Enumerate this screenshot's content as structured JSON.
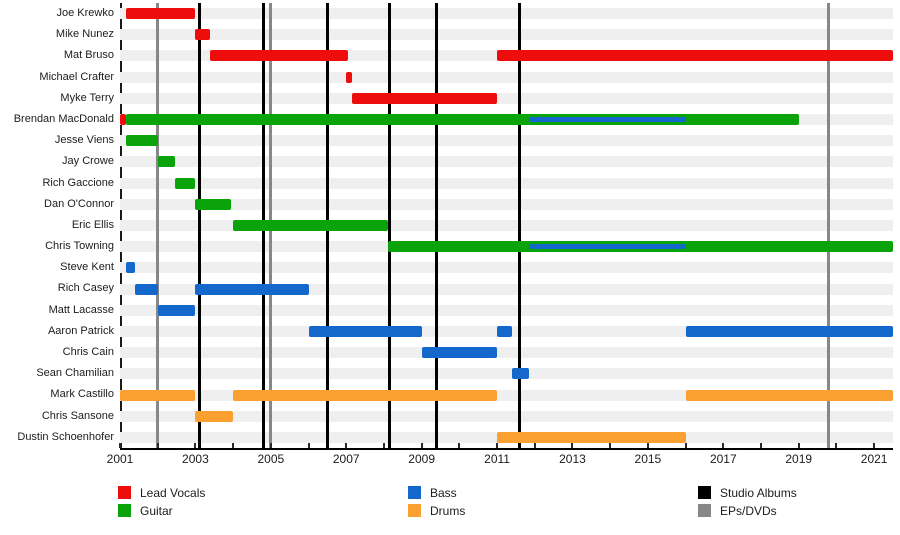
{
  "chart_data": {
    "type": "gantt-timeline",
    "description": "Band member timeline with instrument roles and release markers",
    "x_range": [
      2001,
      2021.5
    ],
    "x_tick_years": [
      2001,
      2002,
      2003,
      2004,
      2005,
      2006,
      2007,
      2008,
      2009,
      2010,
      2011,
      2012,
      2013,
      2014,
      2015,
      2016,
      2017,
      2018,
      2019,
      2020,
      2021
    ],
    "x_label_years": [
      2001,
      2003,
      2005,
      2007,
      2009,
      2011,
      2013,
      2015,
      2017,
      2019,
      2021
    ],
    "colors": {
      "Lead Vocals": "#ee0d0d",
      "Guitar": "#0aa30a",
      "Bass": "#1467cb",
      "Drums": "#f9a031",
      "Studio Albums": "#000000",
      "EPs/DVDs": "#878787"
    },
    "members": [
      {
        "name": "Joe Krewko",
        "bars": [
          {
            "role": "Lead Vocals",
            "start": 2001.15,
            "end": 2003.0
          }
        ]
      },
      {
        "name": "Mike Nunez",
        "bars": [
          {
            "role": "Lead Vocals",
            "start": 2003.0,
            "end": 2003.4
          }
        ]
      },
      {
        "name": "Mat Bruso",
        "bars": [
          {
            "role": "Lead Vocals",
            "start": 2003.4,
            "end": 2007.05
          },
          {
            "role": "Lead Vocals",
            "start": 2011.0,
            "end": 2021.5
          }
        ]
      },
      {
        "name": "Michael Crafter",
        "bars": [
          {
            "role": "Lead Vocals",
            "start": 2007.0,
            "end": 2007.15
          }
        ]
      },
      {
        "name": "Myke Terry",
        "bars": [
          {
            "role": "Lead Vocals",
            "start": 2007.15,
            "end": 2011.0
          }
        ]
      },
      {
        "name": "Brendan MacDonald",
        "bars": [
          {
            "role": "Lead Vocals",
            "start": 2001.0,
            "end": 2001.17
          },
          {
            "role": "Guitar",
            "start": 2001.17,
            "end": 2019.0
          }
        ],
        "overlay": {
          "role": "Bass",
          "start": 2011.85,
          "end": 2016.0
        }
      },
      {
        "name": "Jesse Viens",
        "bars": [
          {
            "role": "Guitar",
            "start": 2001.15,
            "end": 2002.0
          }
        ]
      },
      {
        "name": "Jay Crowe",
        "bars": [
          {
            "role": "Guitar",
            "start": 2002.0,
            "end": 2002.45
          }
        ]
      },
      {
        "name": "Rich Gaccione",
        "bars": [
          {
            "role": "Guitar",
            "start": 2002.45,
            "end": 2003.0
          }
        ]
      },
      {
        "name": "Dan O'Connor",
        "bars": [
          {
            "role": "Guitar",
            "start": 2003.0,
            "end": 2003.95
          }
        ]
      },
      {
        "name": "Eric Ellis",
        "bars": [
          {
            "role": "Guitar",
            "start": 2004.0,
            "end": 2008.1
          }
        ]
      },
      {
        "name": "Chris Towning",
        "bars": [
          {
            "role": "Guitar",
            "start": 2008.1,
            "end": 2021.5
          }
        ],
        "overlay": {
          "role": "Bass",
          "start": 2011.85,
          "end": 2016.0
        }
      },
      {
        "name": "Steve Kent",
        "bars": [
          {
            "role": "Bass",
            "start": 2001.15,
            "end": 2001.4
          }
        ]
      },
      {
        "name": "Rich Casey",
        "bars": [
          {
            "role": "Bass",
            "start": 2001.4,
            "end": 2002.0
          },
          {
            "role": "Bass",
            "start": 2003.0,
            "end": 2006.0
          }
        ]
      },
      {
        "name": "Matt Lacasse",
        "bars": [
          {
            "role": "Bass",
            "start": 2002.0,
            "end": 2003.0
          }
        ]
      },
      {
        "name": "Aaron Patrick",
        "bars": [
          {
            "role": "Bass",
            "start": 2006.0,
            "end": 2009.0
          },
          {
            "role": "Bass",
            "start": 2011.0,
            "end": 2011.4
          },
          {
            "role": "Bass",
            "start": 2016.0,
            "end": 2021.5
          }
        ]
      },
      {
        "name": "Chris Cain",
        "bars": [
          {
            "role": "Bass",
            "start": 2009.0,
            "end": 2011.0
          }
        ]
      },
      {
        "name": "Sean Chamilian",
        "bars": [
          {
            "role": "Bass",
            "start": 2011.4,
            "end": 2011.85
          }
        ]
      },
      {
        "name": "Mark Castillo",
        "bars": [
          {
            "role": "Drums",
            "start": 2001.0,
            "end": 2003.0
          },
          {
            "role": "Drums",
            "start": 2004.0,
            "end": 2011.0
          },
          {
            "role": "Drums",
            "start": 2016.0,
            "end": 2021.5
          }
        ]
      },
      {
        "name": "Chris Sansone",
        "bars": [
          {
            "role": "Drums",
            "start": 2003.0,
            "end": 2004.0
          }
        ]
      },
      {
        "name": "Dustin Schoenhofer",
        "bars": [
          {
            "role": "Drums",
            "start": 2011.0,
            "end": 2016.0
          }
        ]
      }
    ],
    "events": {
      "studio_albums": [
        2003.1,
        2004.8,
        2006.5,
        2008.15,
        2009.4,
        2011.6
      ],
      "eps_dvds": [
        2002.0,
        2005.0,
        2019.8
      ]
    },
    "legend": {
      "columns": [
        {
          "items": [
            {
              "label": "Lead Vocals",
              "color": "#ee0d0d"
            },
            {
              "label": "Guitar",
              "color": "#0aa30a"
            }
          ]
        },
        {
          "items": [
            {
              "label": "Bass",
              "color": "#1467cb"
            },
            {
              "label": "Drums",
              "color": "#f9a031"
            }
          ]
        },
        {
          "items": [
            {
              "label": "Studio Albums",
              "color": "#000000"
            },
            {
              "label": "EPs/DVDs",
              "color": "#878787"
            }
          ]
        }
      ]
    }
  }
}
